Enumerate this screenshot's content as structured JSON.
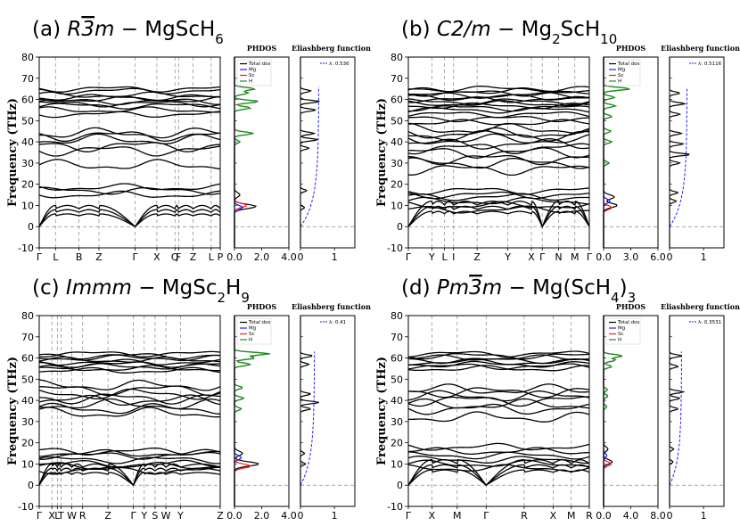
{
  "chart_data": [
    {
      "type": "line",
      "title": "(a) R3̄m − MgScH6",
      "title_parts": [
        "(a) ",
        "R",
        "3",
        "m",
        " − MgScH",
        "6",
        ""
      ],
      "ylabel": "Frequency (THz)",
      "ylim": [
        -10,
        80
      ],
      "yticks": [
        -10,
        0,
        10,
        20,
        30,
        40,
        50,
        60,
        70,
        80
      ],
      "kpath": [
        "Γ",
        "L",
        "B",
        "Z",
        "Γ",
        "X",
        "Q",
        "F",
        "Z",
        "L",
        "P"
      ],
      "kpos": [
        0,
        0.09,
        0.22,
        0.33,
        0.53,
        0.65,
        0.75,
        0.77,
        0.85,
        0.95,
        1
      ],
      "bands": {
        "acoustic_max": 10,
        "low_flat": [
          15,
          17,
          18.5
        ],
        "mid_group": [
          29,
          36,
          38,
          41,
          43,
          44
        ],
        "high_group": [
          53,
          55,
          57,
          58,
          59,
          60,
          61,
          62,
          64,
          65
        ]
      },
      "phdos": {
        "header": "PHDOS",
        "legend": [
          "Total dos",
          "Mg",
          "Sc",
          "H"
        ],
        "xticks": [
          "0.0",
          "2.0",
          "4.0"
        ],
        "xmax": 4,
        "peaks": {
          "total": [
            [
              9.5,
              1.6
            ],
            [
              15,
              0.4
            ]
          ],
          "mg": [
            [
              9,
              0.6
            ]
          ],
          "sc": [
            [
              10,
              0.9
            ]
          ],
          "h": [
            [
              44,
              1.4
            ],
            [
              40,
              0.4
            ],
            [
              56,
              1.2
            ],
            [
              59,
              1.8
            ],
            [
              63,
              1.0
            ],
            [
              65,
              1.5
            ]
          ]
        }
      },
      "eliashberg": {
        "header": "Eliashberg function",
        "lambda_label": "λ: 0.536",
        "lambda": 0.536,
        "xticks": [
          "0",
          "1"
        ],
        "peaks": [
          [
            9,
            0.12
          ],
          [
            17,
            0.18
          ],
          [
            37,
            0.25
          ],
          [
            41,
            0.5
          ],
          [
            44,
            0.4
          ],
          [
            55,
            0.45
          ],
          [
            59,
            0.55
          ],
          [
            64,
            0.3
          ]
        ]
      }
    },
    {
      "type": "line",
      "title": "(b) C2/m − Mg2ScH10",
      "title_parts": [
        "(b) ",
        "C2/m",
        "",
        "",
        " − Mg",
        "2",
        "ScH10"
      ],
      "ylabel": "Frequency (THz)",
      "ylim": [
        -10,
        80
      ],
      "yticks": [
        -10,
        0,
        10,
        20,
        30,
        40,
        50,
        60,
        70,
        80
      ],
      "kpath": [
        "Γ",
        "Y",
        "L",
        "I",
        "Z",
        "Y",
        "X",
        "Γ",
        "N",
        "M",
        "Γ"
      ],
      "kpos": [
        0,
        0.13,
        0.2,
        0.25,
        0.38,
        0.55,
        0.68,
        0.74,
        0.83,
        0.92,
        1
      ],
      "bands": {
        "acoustic_max": 12,
        "low_flat": [
          8,
          10,
          12,
          14,
          15,
          17
        ],
        "mid_group": [
          27,
          30,
          32,
          35,
          37,
          39,
          41,
          43,
          44,
          46
        ],
        "high_group": [
          49,
          51,
          53,
          55,
          56,
          57,
          58,
          59,
          60,
          61,
          62,
          63,
          64,
          65
        ]
      },
      "phdos": {
        "header": "PHDOS",
        "legend": [
          "Total dos",
          "Mg",
          "Sc",
          "H"
        ],
        "xticks": [
          "0.0",
          "3.0",
          "6.0"
        ],
        "xmax": 6,
        "peaks": {
          "total": [
            [
              10,
              1.5
            ],
            [
              14,
              1.2
            ]
          ],
          "mg": [
            [
              12,
              0.7
            ]
          ],
          "sc": [
            [
              9,
              0.9
            ]
          ],
          "h": [
            [
              30,
              0.6
            ],
            [
              40,
              0.9
            ],
            [
              45,
              0.8
            ],
            [
              52,
              0.9
            ],
            [
              57,
              1.3
            ],
            [
              61,
              1.2
            ],
            [
              65,
              3.0
            ]
          ]
        }
      },
      "eliashberg": {
        "header": "Eliashberg function",
        "lambda_label": "λ: 0.5116",
        "lambda": 0.5116,
        "xticks": [
          "0",
          "1"
        ],
        "peaks": [
          [
            12,
            0.2
          ],
          [
            16,
            0.25
          ],
          [
            30,
            0.3
          ],
          [
            34,
            0.6
          ],
          [
            39,
            0.4
          ],
          [
            44,
            0.35
          ],
          [
            53,
            0.3
          ],
          [
            58,
            0.45
          ],
          [
            63,
            0.3
          ]
        ]
      }
    },
    {
      "type": "line",
      "title": "(c) Immm − MgSc2H9",
      "title_parts": [
        "(c) ",
        "Immm",
        "",
        "",
        " − MgSc",
        "2",
        "H9"
      ],
      "ylabel": "Frequency (THz)",
      "ylim": [
        -10,
        80
      ],
      "yticks": [
        -10,
        0,
        10,
        20,
        30,
        40,
        50,
        60,
        70,
        80
      ],
      "kpath": [
        "Γ",
        "X",
        "L",
        "T",
        "W",
        "R",
        "Z",
        "Γ",
        "Y",
        "S",
        "W",
        "Y",
        "Z"
      ],
      "kpos": [
        0,
        0.07,
        0.1,
        0.12,
        0.18,
        0.24,
        0.38,
        0.52,
        0.58,
        0.64,
        0.7,
        0.78,
        1
      ],
      "bands": {
        "acoustic_max": 10,
        "low_flat": [
          7,
          9,
          10,
          12,
          14,
          15,
          16
        ],
        "mid_group": [
          34,
          36,
          38,
          40,
          41,
          43,
          45,
          47
        ],
        "high_group": [
          54,
          55,
          56,
          57,
          58,
          59,
          60,
          61,
          62
        ]
      },
      "phdos": {
        "header": "PHDOS",
        "legend": [
          "Total dos",
          "Mg",
          "Sc",
          "H"
        ],
        "xticks": [
          "0.0",
          "2.0",
          "4.0"
        ],
        "xmax": 4,
        "peaks": {
          "total": [
            [
              10,
              1.8
            ],
            [
              15,
              0.6
            ]
          ],
          "mg": [
            [
              13,
              0.5
            ]
          ],
          "sc": [
            [
              9,
              1.2
            ]
          ],
          "h": [
            [
              36,
              0.5
            ],
            [
              41,
              0.7
            ],
            [
              46,
              0.6
            ],
            [
              57,
              1.2
            ],
            [
              60,
              1.5
            ],
            [
              62,
              2.6
            ]
          ]
        }
      },
      "eliashberg": {
        "header": "Eliashberg function",
        "lambda_label": "λ: 0.41",
        "lambda": 0.41,
        "xticks": [
          "0",
          "1"
        ],
        "peaks": [
          [
            10,
            0.15
          ],
          [
            15,
            0.12
          ],
          [
            36,
            0.3
          ],
          [
            39,
            0.55
          ],
          [
            43,
            0.3
          ],
          [
            57,
            0.25
          ],
          [
            61,
            0.35
          ]
        ]
      }
    },
    {
      "type": "line",
      "title": "(d) Pm3̄m − Mg(ScH4)3",
      "title_parts": [
        "(d) ",
        "Pm",
        "3",
        "m",
        " − Mg(ScH",
        "4",
        ")3"
      ],
      "ylabel": "Frequency (THz)",
      "ylim": [
        -10,
        80
      ],
      "yticks": [
        -10,
        0,
        10,
        20,
        30,
        40,
        50,
        60,
        70,
        80
      ],
      "kpath": [
        "Γ",
        "X",
        "M",
        "Γ",
        "R",
        "X",
        "M",
        "R"
      ],
      "kpos": [
        0,
        0.13,
        0.27,
        0.43,
        0.64,
        0.8,
        0.9,
        1
      ],
      "bands": {
        "acoustic_max": 12,
        "low_flat": [
          8,
          10,
          12,
          14,
          16,
          18
        ],
        "mid_group": [
          32,
          36,
          38,
          40,
          42,
          44,
          45
        ],
        "high_group": [
          55,
          56,
          57,
          58,
          59,
          60,
          61,
          62
        ]
      },
      "phdos": {
        "header": "PHDOS",
        "legend": [
          "Total dos",
          "Mg",
          "Sc",
          "H"
        ],
        "xticks": [
          "0.0",
          "4.0",
          "8.0"
        ],
        "xmax": 10,
        "peaks": {
          "total": [
            [
              11,
              1.6
            ],
            [
              17,
              0.8
            ]
          ],
          "mg": [
            [
              14,
              0.6
            ]
          ],
          "sc": [
            [
              10,
              1.4
            ]
          ],
          "h": [
            [
              37,
              0.6
            ],
            [
              42,
              0.8
            ],
            [
              45,
              0.7
            ],
            [
              56,
              1.5
            ],
            [
              59,
              2.2
            ],
            [
              61,
              3.5
            ]
          ]
        }
      },
      "eliashberg": {
        "header": "Eliashberg function",
        "lambda_label": "λ: 0.3531",
        "lambda": 0.3531,
        "xticks": [
          "0",
          "1"
        ],
        "peaks": [
          [
            11,
            0.1
          ],
          [
            17,
            0.12
          ],
          [
            36,
            0.25
          ],
          [
            41,
            0.3
          ],
          [
            44,
            0.4
          ],
          [
            56,
            0.25
          ],
          [
            61,
            0.35
          ]
        ]
      }
    }
  ],
  "colors": {
    "total": "#000000",
    "mg": "#1a1aff",
    "sc": "#ff1a1a",
    "h": "#1f8a1f",
    "lambda_line": "#1a1aff",
    "bands": "#000000",
    "guides": "#888888"
  }
}
